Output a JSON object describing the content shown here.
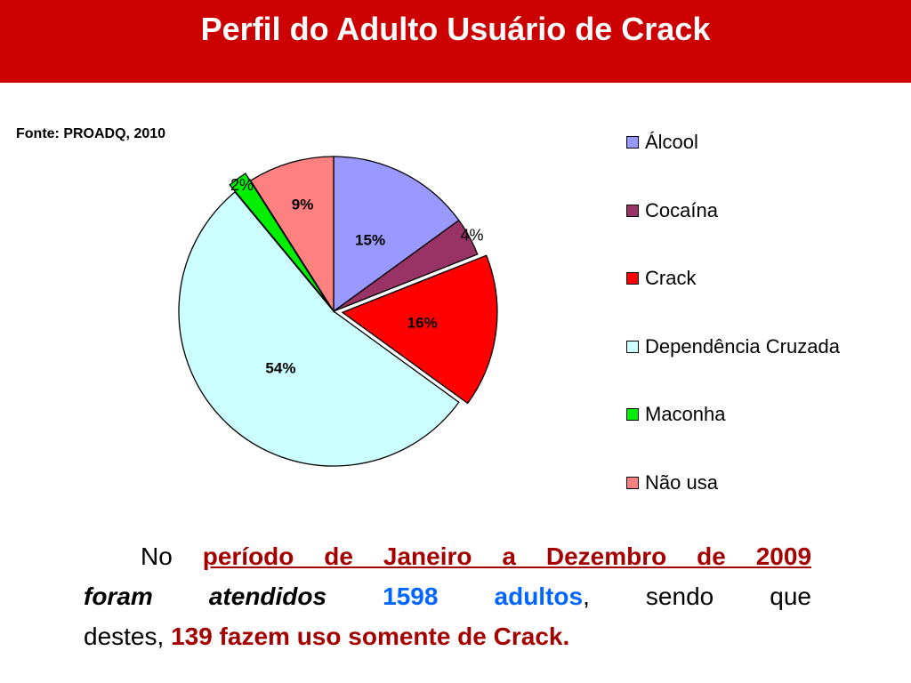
{
  "title": "Perfil do Adulto Usuário de Crack",
  "source": "Fonte: PROADQ, 2010",
  "colors": {
    "title_bg": "#cc0000",
    "emphasis_red": "#a50000",
    "emphasis_blue": "#0066ff"
  },
  "chart_data": {
    "type": "pie",
    "categories": [
      "Álcool",
      "Cocaína",
      "Crack",
      "Dependência Cruzada",
      "Maconha",
      "Não usa"
    ],
    "values": [
      15,
      4,
      16,
      54,
      2,
      9
    ],
    "labels": [
      "15%",
      "4%",
      "16%",
      "54%",
      "2%",
      "9%"
    ],
    "colors": [
      "#9999ff",
      "#993366",
      "#ff0000",
      "#ccffff",
      "#00ee00",
      "#ff8080"
    ],
    "exploded": [
      "Crack",
      "Maconha"
    ],
    "legend_position": "right"
  },
  "caption": {
    "p1_prefix": "No",
    "p1_highlight": "período de Janeiro a Dezembro de 2009",
    "p2_italic": "foram atendidos",
    "p2_number": "1598",
    "p2_unit": "adultos",
    "p2_comma": ",",
    "p2_rest": "sendo que",
    "p3_prefix": "destes,",
    "p3_highlight": "139 fazem uso somente de Crack."
  }
}
